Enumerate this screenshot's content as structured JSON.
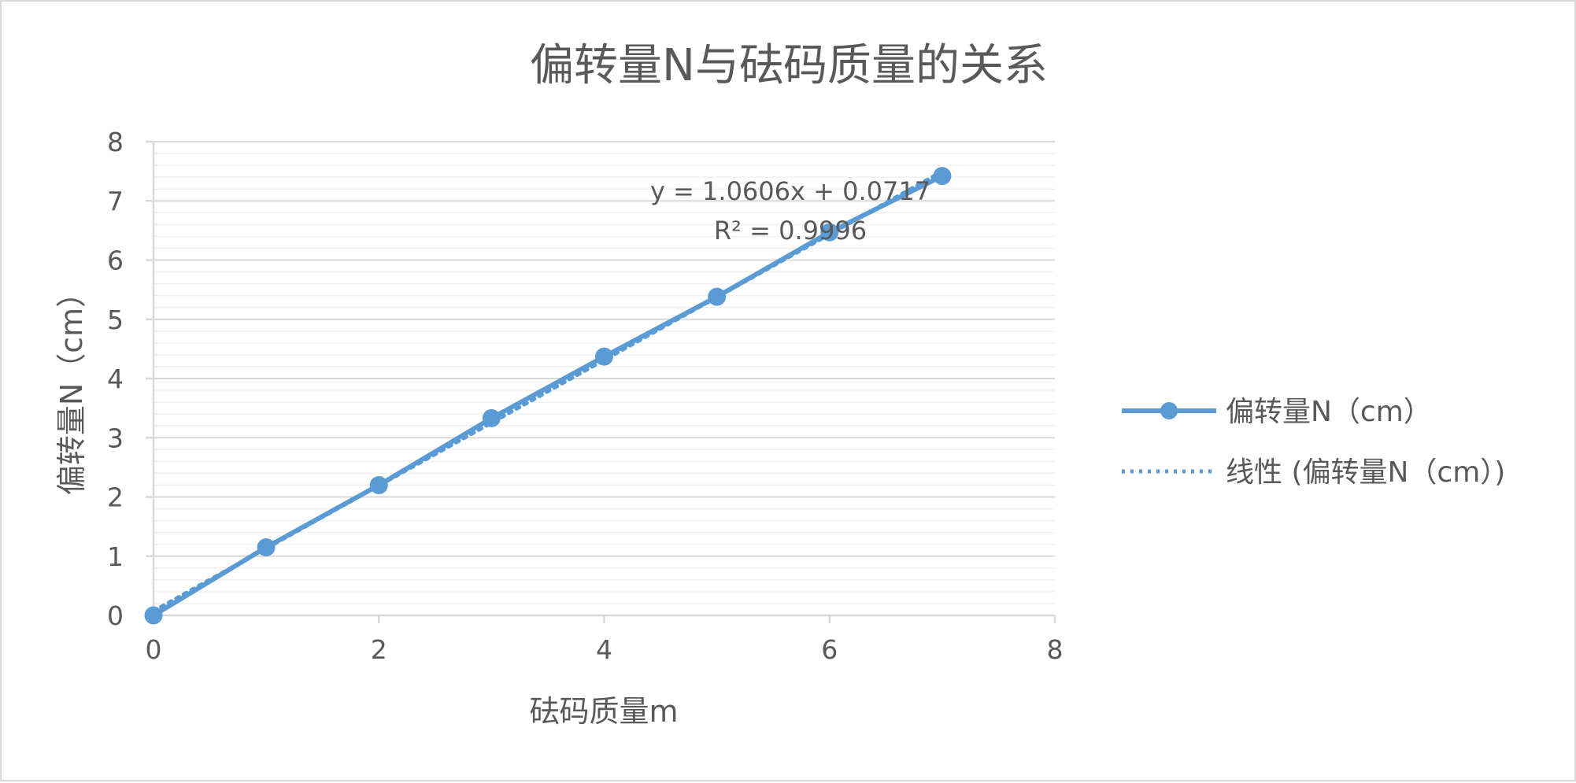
{
  "chart_data": {
    "type": "scatter",
    "title": "偏转量N与砝码质量的关系",
    "xlabel": "砝码质量m",
    "ylabel": "偏转量N（cm）",
    "xlim": [
      0,
      8
    ],
    "ylim": [
      0,
      8
    ],
    "x_ticks": [
      "0",
      "2",
      "4",
      "6",
      "8"
    ],
    "y_ticks": [
      "0",
      "1",
      "2",
      "3",
      "4",
      "5",
      "6",
      "7",
      "8"
    ],
    "grid": true,
    "legend_position": "right",
    "series": [
      {
        "name": "偏转量N（cm）",
        "x": [
          0,
          1,
          2,
          3,
          4,
          5,
          6,
          7
        ],
        "y": [
          0,
          1.15,
          2.2,
          3.33,
          4.37,
          5.38,
          6.47,
          7.42
        ],
        "color": "#5b9bd5"
      }
    ],
    "trendline": {
      "name": "线性 (偏转量N（cm）)",
      "slope": 1.0606,
      "intercept": 0.0717,
      "equation": "y = 1.0606x + 0.0717",
      "r_squared": "R² = 0.9996",
      "color": "#5b9bd5"
    }
  }
}
